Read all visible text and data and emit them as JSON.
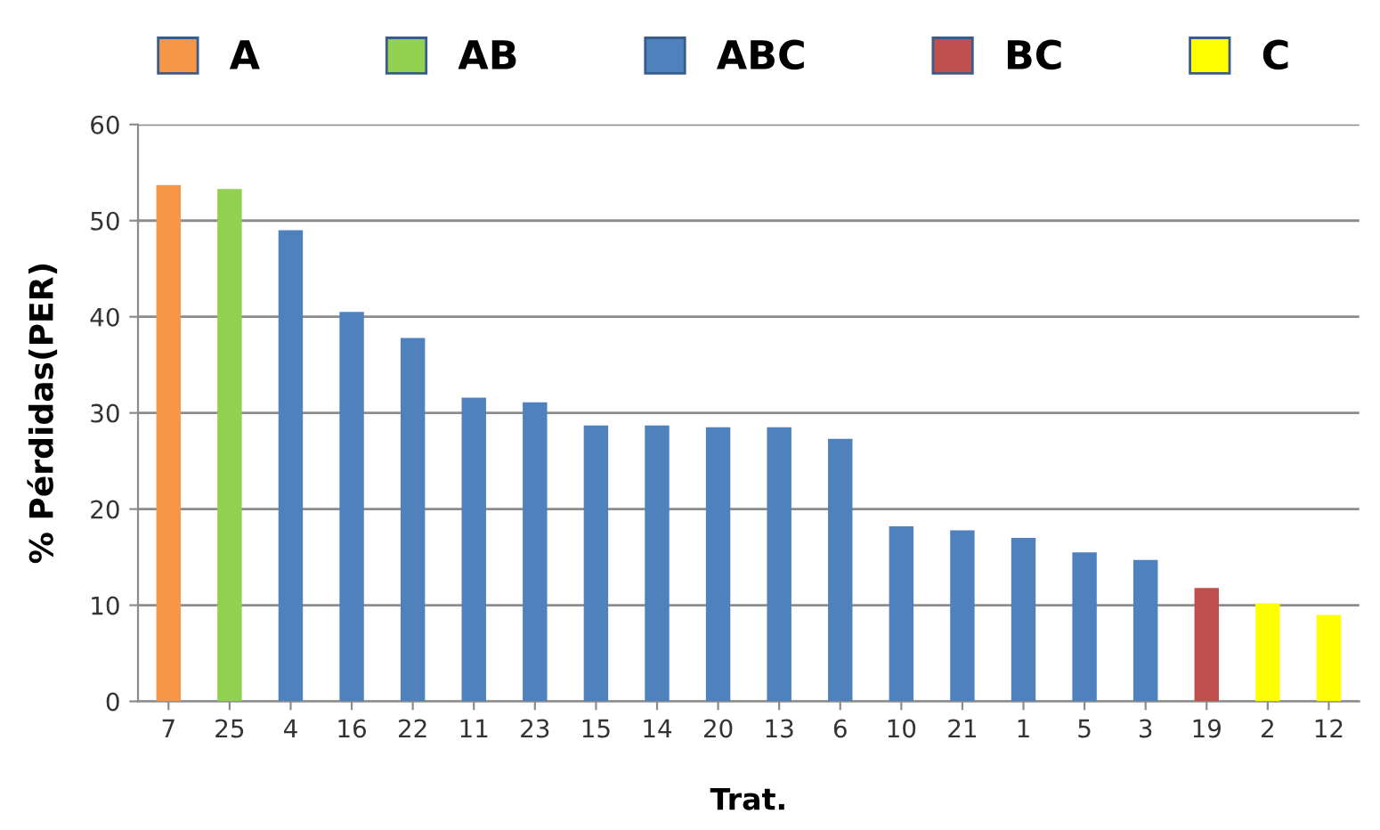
{
  "chart_data": {
    "type": "bar",
    "xlabel": "Trat.",
    "ylabel": "% Pérdidas(PER)",
    "categories": [
      "7",
      "25",
      "4",
      "16",
      "22",
      "11",
      "23",
      "15",
      "14",
      "20",
      "13",
      "6",
      "10",
      "21",
      "1",
      "5",
      "3",
      "19",
      "2",
      "12"
    ],
    "series": [
      {
        "name": "A",
        "color": "#f79646",
        "values": [
          53.7,
          null,
          null,
          null,
          null,
          null,
          null,
          null,
          null,
          null,
          null,
          null,
          null,
          null,
          null,
          null,
          null,
          null,
          null,
          null
        ]
      },
      {
        "name": "AB",
        "color": "#92d050",
        "values": [
          null,
          53.3,
          null,
          null,
          null,
          null,
          null,
          null,
          null,
          null,
          null,
          null,
          null,
          null,
          null,
          null,
          null,
          null,
          null,
          null
        ]
      },
      {
        "name": "ABC",
        "color": "#4f81bd",
        "values": [
          null,
          null,
          49.0,
          40.5,
          37.8,
          31.6,
          31.1,
          28.7,
          28.7,
          28.5,
          28.5,
          27.3,
          18.2,
          17.8,
          17.0,
          15.5,
          14.7,
          null,
          null,
          null
        ]
      },
      {
        "name": "BC",
        "color": "#c0504d",
        "values": [
          null,
          null,
          null,
          null,
          null,
          null,
          null,
          null,
          null,
          null,
          null,
          null,
          null,
          null,
          null,
          null,
          null,
          11.8,
          null,
          null
        ]
      },
      {
        "name": "C",
        "color": "#ffff00",
        "values": [
          null,
          null,
          null,
          null,
          null,
          null,
          null,
          null,
          null,
          null,
          null,
          null,
          null,
          null,
          null,
          null,
          null,
          null,
          10.2,
          9.0
        ]
      }
    ],
    "ylim": [
      0,
      60
    ],
    "yticks": [
      0,
      10,
      20,
      30,
      40,
      50,
      60
    ],
    "grid": "y",
    "legend": "top"
  }
}
